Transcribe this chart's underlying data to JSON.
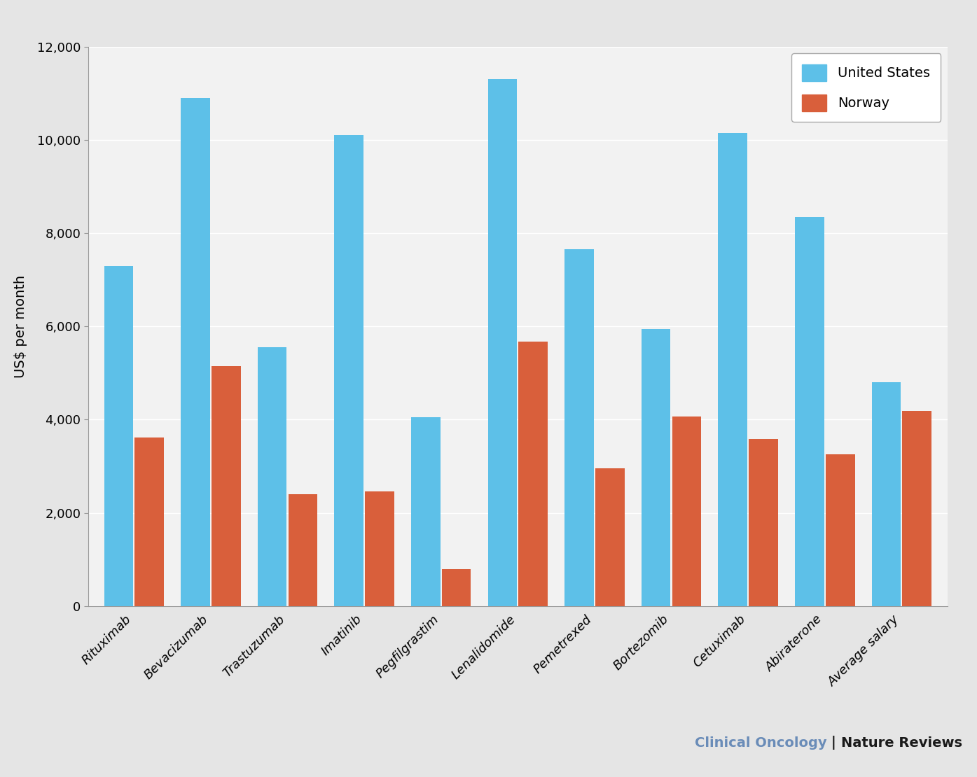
{
  "categories": [
    "Rituximab",
    "Bevacizumab",
    "Trastuzumab",
    "Imatinib",
    "Pegfilgrastim",
    "Lenalidomide",
    "Pemetrexed",
    "Bortezomib",
    "Cetuximab",
    "Abiraterone",
    "Average salary"
  ],
  "us_values": [
    7300,
    10900,
    5550,
    10100,
    4050,
    11300,
    7650,
    5950,
    10150,
    8350,
    4800
  ],
  "norway_values": [
    3620,
    5150,
    2400,
    2460,
    790,
    5680,
    2960,
    4060,
    3580,
    3260,
    4180
  ],
  "us_color": "#5DC0E8",
  "norway_color": "#D95F3B",
  "ylabel": "US$ per month",
  "ylim": [
    0,
    12000
  ],
  "yticks": [
    0,
    2000,
    4000,
    6000,
    8000,
    10000,
    12000
  ],
  "legend_us": "United States",
  "legend_norway": "Norway",
  "outer_bg": "#E5E5E5",
  "plot_bg": "#F2F2F2",
  "footer_nature_text": "Nature Reviews",
  "footer_sep_text": " | ",
  "footer_journal_text": "Clinical Oncology",
  "footer_nature_color": "#1a1a1a",
  "footer_sep_color": "#1a1a1a",
  "footer_journal_color": "#6A8CB8",
  "footer_fontsize": 14
}
